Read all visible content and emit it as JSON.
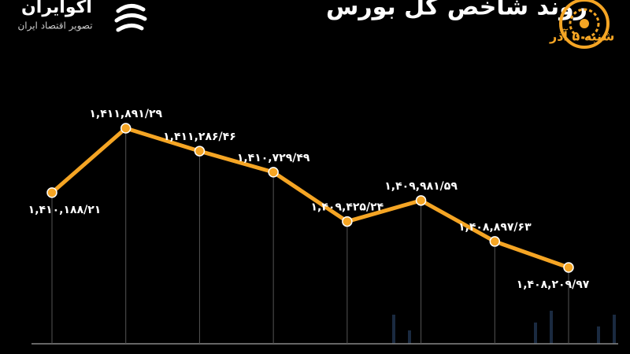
{
  "brand": {
    "name": "آکوایران",
    "tagline": "تصویر اقتصاد ایران"
  },
  "chart_data": {
    "type": "line",
    "title": "روند شاخص کل بورس",
    "subtitle": "شنبه ۵ آذر",
    "color": "#f5a524",
    "values": [
      1410188.21,
      1411891.29,
      1411286.46,
      1410729.49,
      1409425.24,
      1409981.59,
      1408897.63,
      1408209.97
    ],
    "value_labels": [
      "۱,۴۱۰,۱۸۸/۲۱",
      "۱,۴۱۱,۸۹۱/۲۹",
      "۱,۴۱۱,۲۸۶/۴۶",
      "۱,۴۱۰,۷۲۹/۴۹",
      "۱,۴۰۹,۴۲۵/۲۴",
      "۱,۴۰۹,۹۸۱/۵۹",
      "۱,۴۰۸,۸۹۷/۶۳",
      "۱,۴۰۸,۲۰۹/۹۷"
    ]
  }
}
